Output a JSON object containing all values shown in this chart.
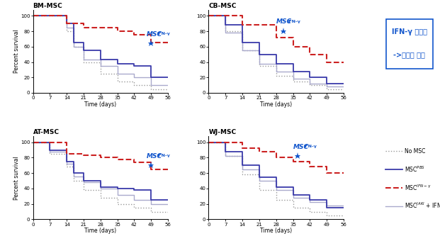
{
  "panels": [
    {
      "title": "BM-MSC",
      "ann_x": 47,
      "ann_y": 72,
      "star_x": 49,
      "star_y": 64,
      "curves": {
        "no_msc": {
          "x": [
            0,
            14,
            14,
            17,
            17,
            21,
            21,
            28,
            28,
            35,
            35,
            42,
            42,
            49,
            49,
            56
          ],
          "y": [
            100,
            100,
            80,
            80,
            60,
            60,
            40,
            40,
            25,
            25,
            15,
            15,
            10,
            10,
            5,
            5
          ]
        },
        "msc_pbs": {
          "x": [
            0,
            14,
            14,
            17,
            17,
            21,
            21,
            28,
            28,
            35,
            35,
            42,
            42,
            49,
            49,
            56
          ],
          "y": [
            100,
            100,
            90,
            90,
            65,
            65,
            55,
            55,
            43,
            43,
            38,
            38,
            35,
            35,
            20,
            20
          ]
        },
        "msc_ifn": {
          "x": [
            0,
            14,
            14,
            21,
            21,
            35,
            35,
            42,
            42,
            49,
            49,
            56
          ],
          "y": [
            100,
            100,
            90,
            90,
            85,
            85,
            80,
            80,
            75,
            75,
            65,
            65
          ]
        },
        "msc_jaki": {
          "x": [
            0,
            14,
            14,
            17,
            17,
            21,
            21,
            28,
            28,
            35,
            35,
            42,
            42,
            49,
            49,
            56
          ],
          "y": [
            100,
            100,
            85,
            85,
            60,
            60,
            43,
            43,
            35,
            35,
            25,
            25,
            20,
            20,
            10,
            10
          ]
        }
      }
    },
    {
      "title": "CB-MSC",
      "ann_x": 28,
      "ann_y": 88,
      "star_x": 31,
      "star_y": 80,
      "curves": {
        "no_msc": {
          "x": [
            0,
            7,
            7,
            14,
            14,
            21,
            21,
            28,
            28,
            35,
            35,
            42,
            42,
            49,
            49,
            56
          ],
          "y": [
            100,
            100,
            80,
            80,
            55,
            55,
            35,
            35,
            22,
            22,
            15,
            15,
            10,
            10,
            5,
            5
          ]
        },
        "msc_pbs": {
          "x": [
            0,
            7,
            7,
            14,
            14,
            21,
            21,
            28,
            28,
            35,
            35,
            42,
            42,
            49,
            49,
            56
          ],
          "y": [
            100,
            100,
            88,
            88,
            65,
            65,
            50,
            50,
            38,
            38,
            28,
            28,
            20,
            20,
            12,
            12
          ]
        },
        "msc_ifn": {
          "x": [
            0,
            7,
            7,
            14,
            14,
            28,
            28,
            35,
            35,
            42,
            42,
            49,
            49,
            56
          ],
          "y": [
            100,
            100,
            100,
            100,
            88,
            88,
            72,
            72,
            60,
            60,
            50,
            50,
            40,
            40
          ]
        },
        "msc_jaki": {
          "x": [
            0,
            7,
            7,
            14,
            14,
            21,
            21,
            28,
            28,
            35,
            35,
            42,
            42,
            49,
            49,
            56
          ],
          "y": [
            100,
            100,
            78,
            78,
            55,
            55,
            38,
            38,
            28,
            28,
            18,
            18,
            12,
            12,
            8,
            8
          ]
        }
      }
    },
    {
      "title": "AT-MSC",
      "ann_x": 47,
      "ann_y": 78,
      "star_x": 49,
      "star_y": 70,
      "curves": {
        "no_msc": {
          "x": [
            0,
            7,
            7,
            14,
            14,
            17,
            17,
            21,
            21,
            28,
            28,
            35,
            35,
            42,
            42,
            49,
            49,
            56
          ],
          "y": [
            100,
            100,
            85,
            85,
            68,
            68,
            50,
            50,
            38,
            38,
            28,
            28,
            20,
            20,
            15,
            15,
            10,
            10
          ]
        },
        "msc_pbs": {
          "x": [
            0,
            7,
            7,
            14,
            14,
            17,
            17,
            21,
            21,
            28,
            28,
            35,
            35,
            42,
            42,
            49,
            49,
            56
          ],
          "y": [
            100,
            100,
            90,
            90,
            75,
            75,
            60,
            60,
            50,
            50,
            42,
            42,
            40,
            40,
            38,
            38,
            25,
            25
          ]
        },
        "msc_ifn": {
          "x": [
            0,
            7,
            7,
            14,
            14,
            21,
            21,
            28,
            28,
            35,
            35,
            42,
            42,
            49,
            49,
            56
          ],
          "y": [
            100,
            100,
            100,
            100,
            85,
            85,
            83,
            83,
            80,
            80,
            78,
            78,
            74,
            74,
            65,
            65
          ]
        },
        "msc_jaki": {
          "x": [
            0,
            7,
            7,
            14,
            14,
            17,
            17,
            21,
            21,
            28,
            28,
            35,
            35,
            42,
            42,
            49,
            49,
            56
          ],
          "y": [
            100,
            100,
            88,
            88,
            72,
            72,
            56,
            56,
            48,
            48,
            40,
            40,
            32,
            32,
            25,
            25,
            20,
            20
          ]
        }
      }
    },
    {
      "title": "WJ-MSC",
      "ann_x": 35,
      "ann_y": 90,
      "star_x": 37,
      "star_y": 82,
      "curves": {
        "no_msc": {
          "x": [
            0,
            7,
            7,
            14,
            14,
            21,
            21,
            28,
            28,
            35,
            35,
            42,
            42,
            49,
            49,
            56
          ],
          "y": [
            100,
            100,
            82,
            82,
            58,
            58,
            38,
            38,
            25,
            25,
            15,
            15,
            10,
            10,
            5,
            5
          ]
        },
        "msc_pbs": {
          "x": [
            0,
            7,
            7,
            14,
            14,
            21,
            21,
            28,
            28,
            35,
            35,
            42,
            42,
            49,
            49,
            56
          ],
          "y": [
            100,
            100,
            88,
            88,
            70,
            70,
            55,
            55,
            42,
            42,
            32,
            32,
            25,
            25,
            15,
            15
          ]
        },
        "msc_ifn": {
          "x": [
            0,
            7,
            7,
            14,
            14,
            21,
            21,
            28,
            28,
            35,
            35,
            42,
            42,
            49,
            49,
            56
          ],
          "y": [
            100,
            100,
            100,
            100,
            92,
            92,
            88,
            88,
            80,
            80,
            75,
            75,
            68,
            68,
            60,
            60
          ]
        },
        "msc_jaki": {
          "x": [
            0,
            7,
            7,
            14,
            14,
            21,
            21,
            28,
            28,
            35,
            35,
            42,
            42,
            49,
            49,
            56
          ],
          "y": [
            100,
            100,
            82,
            82,
            65,
            65,
            50,
            50,
            38,
            38,
            28,
            28,
            22,
            22,
            18,
            18
          ]
        }
      }
    }
  ],
  "colors": {
    "no_msc": "#999999",
    "msc_pbs": "#3a3aaa",
    "msc_ifn": "#cc2222",
    "msc_jaki": "#aaaacc"
  },
  "linestyles": {
    "no_msc": "dotted",
    "msc_pbs": "solid",
    "msc_ifn": "--",
    "msc_jaki": "solid"
  },
  "linewidths": {
    "no_msc": 1.0,
    "msc_pbs": 1.3,
    "msc_ifn": 1.5,
    "msc_jaki": 1.0
  },
  "annotation_color": "#1155cc",
  "box_color": "#1155cc",
  "xticks": [
    0,
    7,
    14,
    21,
    28,
    35,
    42,
    49,
    56
  ],
  "yticks": [
    0,
    20,
    40,
    60,
    80,
    100
  ],
  "xlabel": "Time (days)",
  "ylabel": "Percent survival",
  "curve_order": [
    "no_msc",
    "msc_jaki",
    "msc_pbs",
    "msc_ifn"
  ]
}
